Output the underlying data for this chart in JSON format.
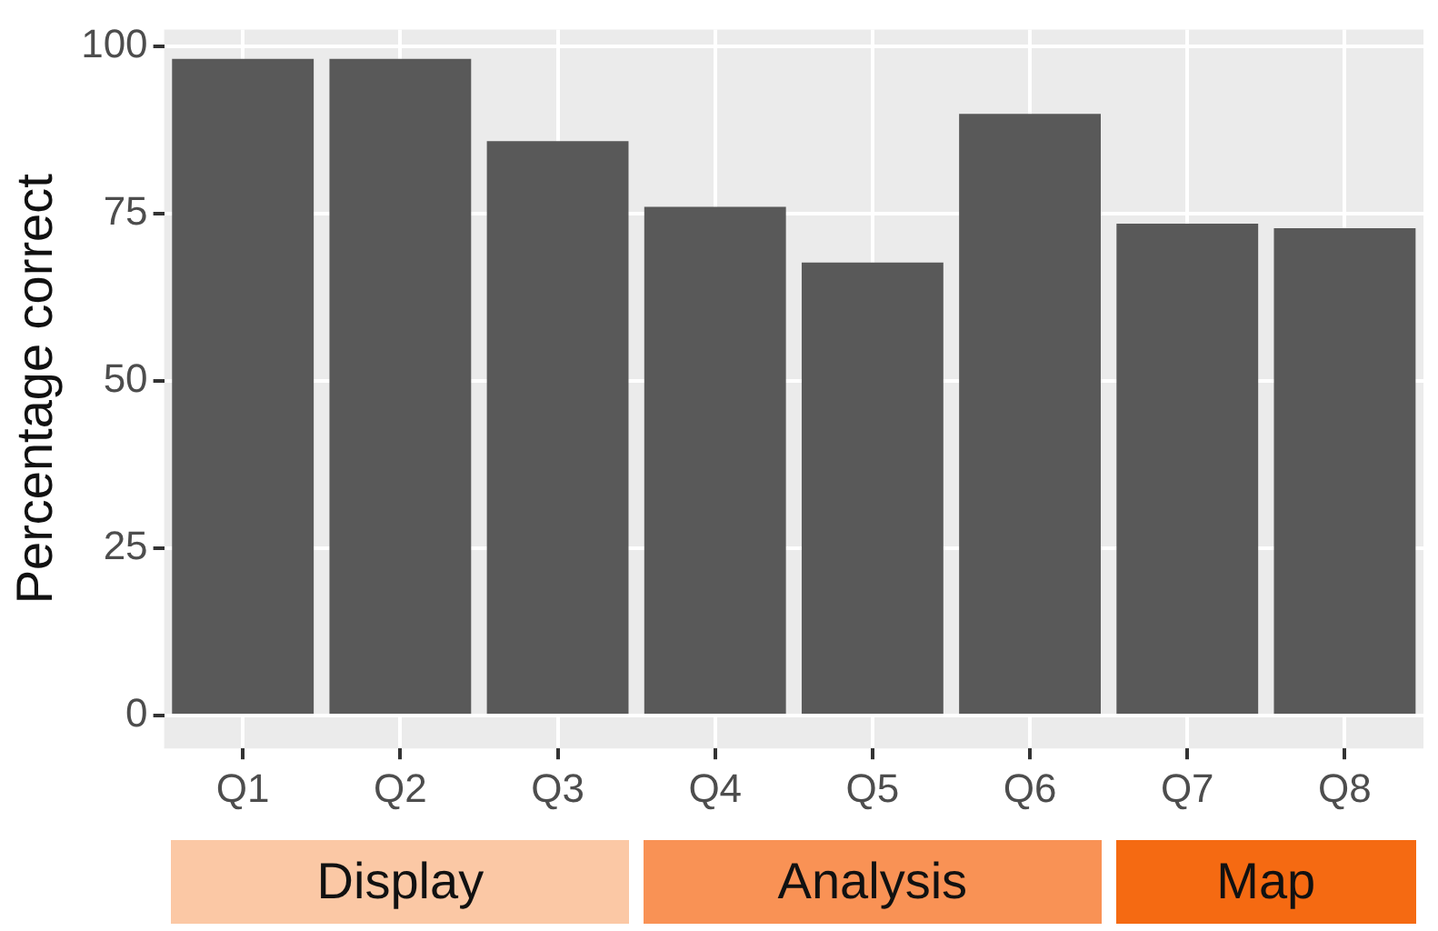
{
  "chart_data": {
    "type": "bar",
    "ylabel": "Percentage correct",
    "categories": [
      "Q1",
      "Q2",
      "Q3",
      "Q4",
      "Q5",
      "Q6",
      "Q7",
      "Q8"
    ],
    "values": [
      98.1,
      98.1,
      85.8,
      76.0,
      67.7,
      89.9,
      73.5,
      72.8
    ],
    "color": "#595959",
    "ylim": [
      -4.9,
      102.5
    ],
    "yticks": [
      0,
      25,
      50,
      75,
      100
    ],
    "grid": true,
    "annotations": [
      "Display",
      "Analysis",
      "Map"
    ]
  }
}
